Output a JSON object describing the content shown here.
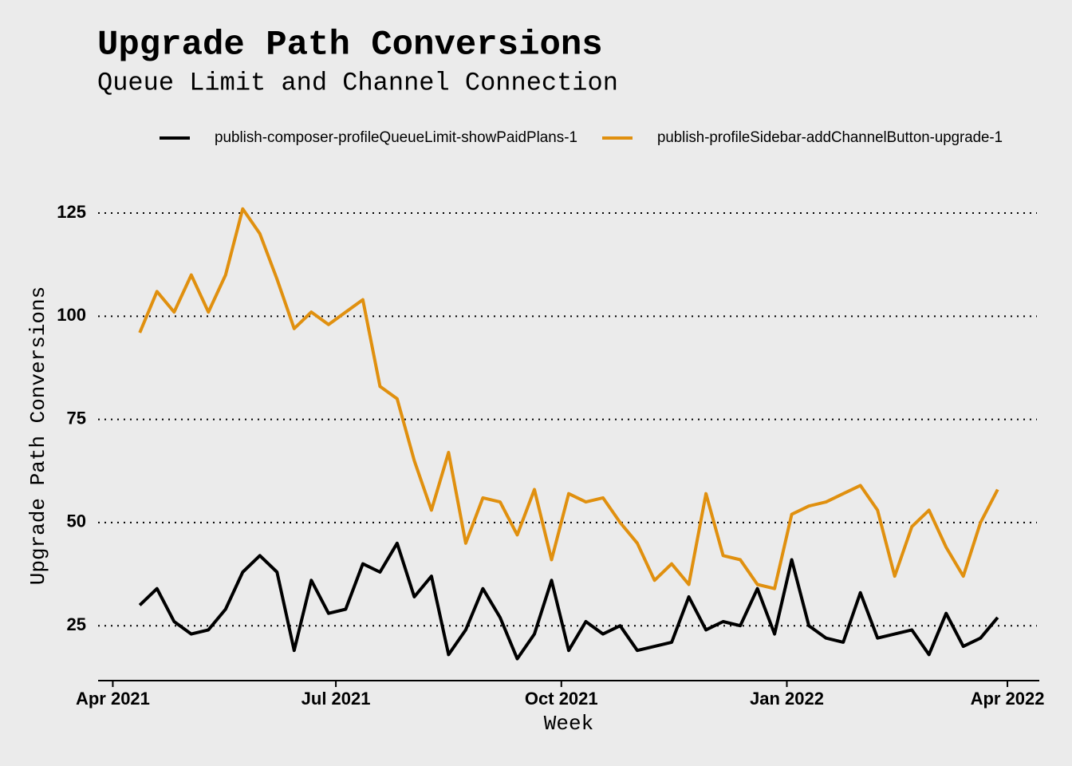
{
  "chart_data": {
    "type": "line",
    "title": "Upgrade Path Conversions",
    "subtitle": "Queue Limit and Channel Connection",
    "x_label": "Week",
    "y_label": "Upgrade Path Conversions",
    "legend": "top",
    "grid": true,
    "x": [
      "2021-04-12",
      "2021-04-19",
      "2021-04-26",
      "2021-05-03",
      "2021-05-10",
      "2021-05-17",
      "2021-05-24",
      "2021-05-31",
      "2021-06-07",
      "2021-06-14",
      "2021-06-21",
      "2021-06-28",
      "2021-07-05",
      "2021-07-12",
      "2021-07-19",
      "2021-07-26",
      "2021-08-02",
      "2021-08-09",
      "2021-08-16",
      "2021-08-23",
      "2021-08-30",
      "2021-09-06",
      "2021-09-13",
      "2021-09-20",
      "2021-09-27",
      "2021-10-04",
      "2021-10-11",
      "2021-10-18",
      "2021-10-25",
      "2021-11-01",
      "2021-11-08",
      "2021-11-15",
      "2021-11-22",
      "2021-11-29",
      "2021-12-06",
      "2021-12-13",
      "2021-12-20",
      "2021-12-27",
      "2022-01-03",
      "2022-01-10",
      "2022-01-17",
      "2022-01-24",
      "2022-01-31",
      "2022-02-07",
      "2022-02-14",
      "2022-02-21",
      "2022-02-28",
      "2022-03-07",
      "2022-03-14",
      "2022-03-21",
      "2022-03-28"
    ],
    "series": [
      {
        "name": "publish-composer-profileQueueLimit-showPaidPlans-1",
        "color": "#000000",
        "values": [
          30,
          34,
          26,
          23,
          24,
          29,
          38,
          42,
          38,
          19,
          36,
          28,
          29,
          40,
          38,
          45,
          32,
          37,
          18,
          24,
          34,
          27,
          17,
          23,
          36,
          19,
          26,
          23,
          25,
          19,
          20,
          21,
          32,
          24,
          26,
          25,
          34,
          23,
          41,
          25,
          22,
          21,
          33,
          22,
          23,
          24,
          18,
          28,
          20,
          22,
          27
        ]
      },
      {
        "name": "publish-profileSidebar-addChannelButton-upgrade-1",
        "color": "#e0900f",
        "values": [
          96,
          106,
          101,
          110,
          101,
          110,
          126,
          120,
          109,
          97,
          101,
          98,
          101,
          104,
          83,
          80,
          65,
          53,
          67,
          45,
          56,
          55,
          47,
          58,
          41,
          57,
          55,
          56,
          50,
          45,
          36,
          40,
          35,
          57,
          42,
          41,
          35,
          34,
          52,
          54,
          55,
          57,
          59,
          53,
          37,
          49,
          53,
          44,
          37,
          50,
          58
        ]
      }
    ],
    "xlim": [
      "2021-03-26",
      "2022-04-14"
    ],
    "xticks": [
      {
        "value": "2021-04-01",
        "label": "Apr 2021"
      },
      {
        "value": "2021-07-01",
        "label": "Jul 2021"
      },
      {
        "value": "2021-10-01",
        "label": "Oct 2021"
      },
      {
        "value": "2022-01-01",
        "label": "Jan 2022"
      },
      {
        "value": "2022-04-01",
        "label": "Apr 2022"
      }
    ],
    "ylim": [
      11.7,
      128
    ],
    "yticks": [
      25,
      50,
      75,
      100,
      125
    ]
  }
}
